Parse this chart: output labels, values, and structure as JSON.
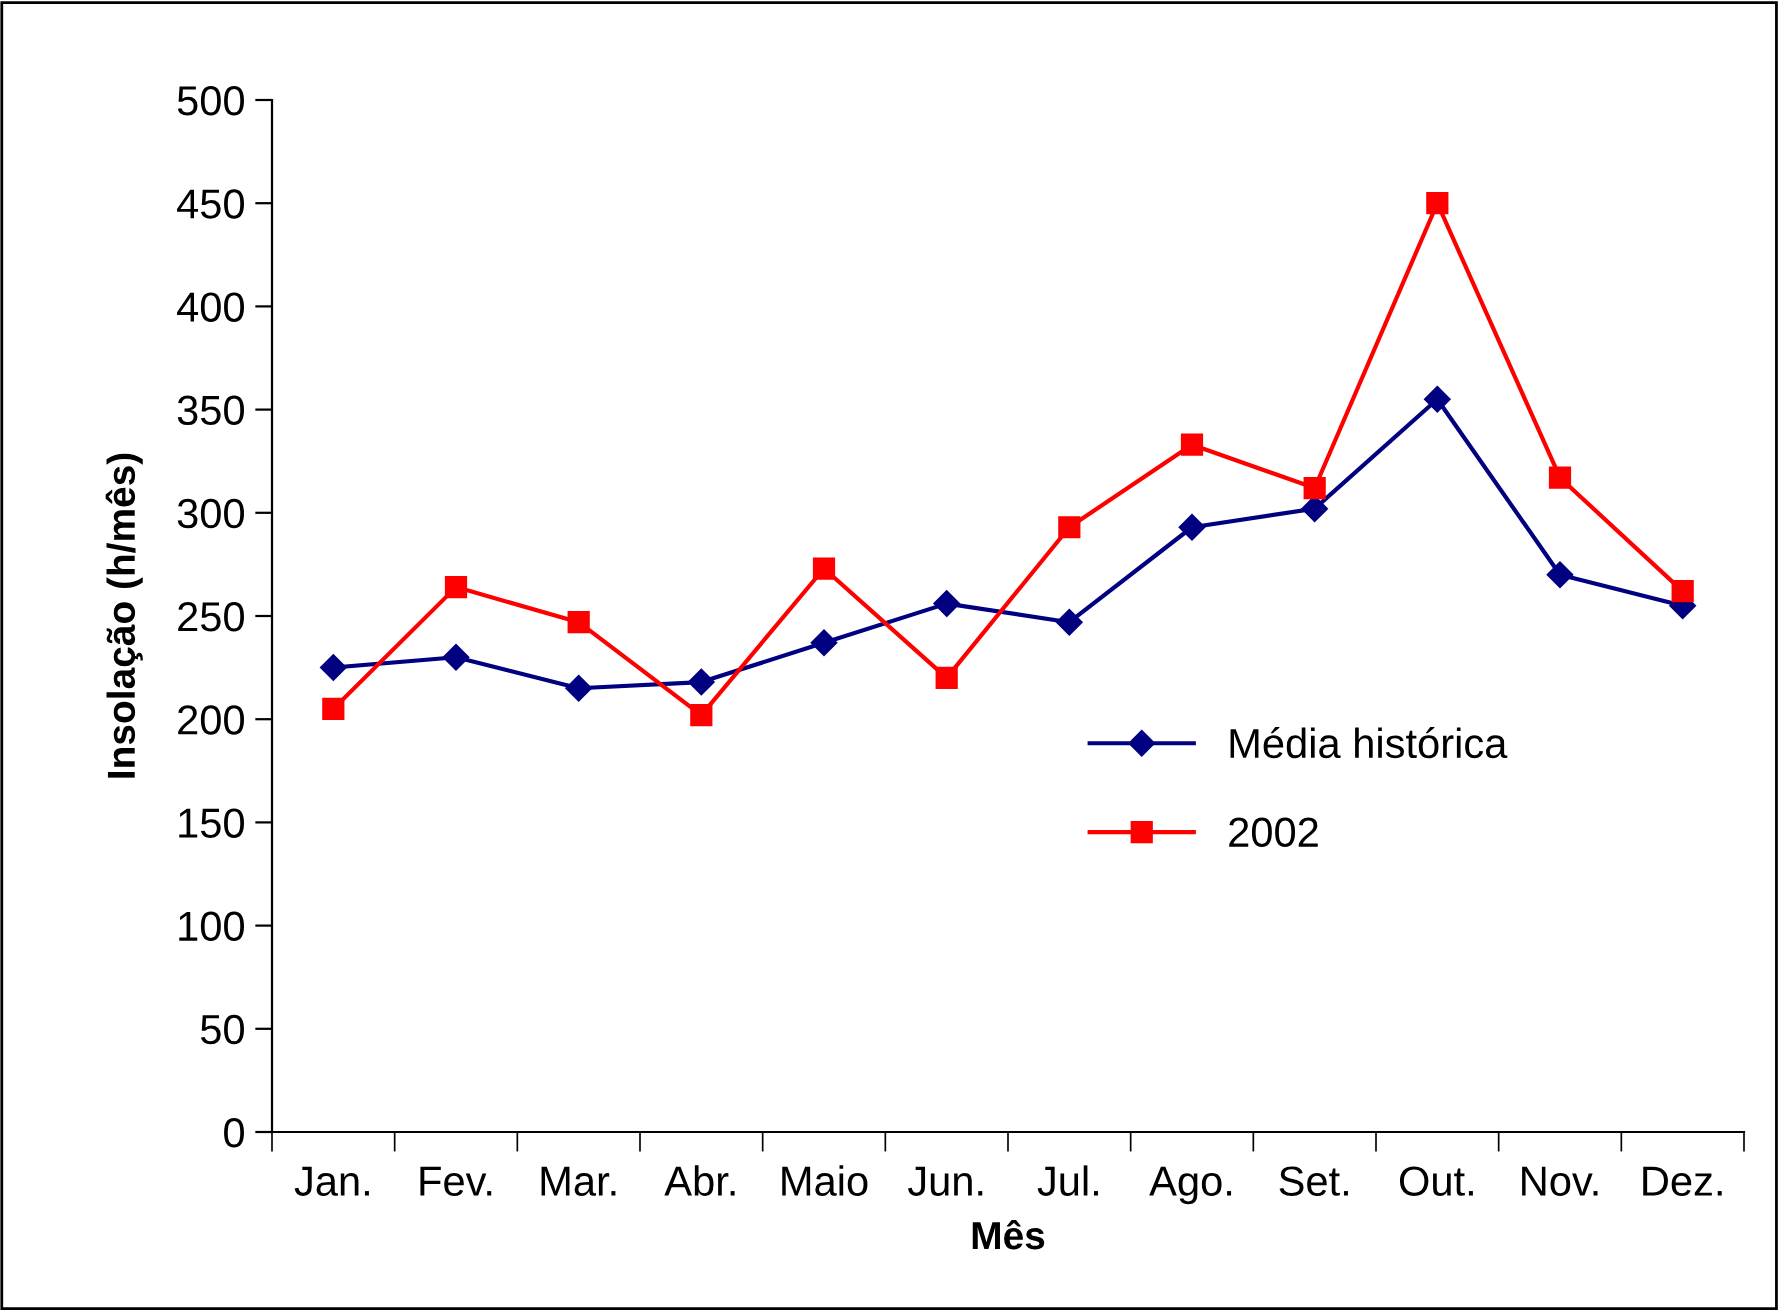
{
  "chart_data": {
    "type": "line",
    "xlabel": "Mês",
    "ylabel": "Insolação (h/mês)",
    "categories": [
      "Jan.",
      "Fev.",
      "Mar.",
      "Abr.",
      "Maio",
      "Jun.",
      "Jul.",
      "Ago.",
      "Set.",
      "Out.",
      "Nov.",
      "Dez."
    ],
    "series": [
      {
        "name": "Média histórica",
        "color": "#000080",
        "marker": "diamond",
        "values": [
          225,
          230,
          215,
          218,
          237,
          256,
          247,
          293,
          302,
          355,
          270,
          255
        ]
      },
      {
        "name": "2002",
        "color": "#ff0000",
        "marker": "square",
        "values": [
          205,
          264,
          247,
          202,
          273,
          220,
          293,
          333,
          312,
          450,
          317,
          262
        ]
      }
    ],
    "ylim": [
      0,
      500
    ],
    "yticks": [
      0,
      50,
      100,
      150,
      200,
      250,
      300,
      350,
      400,
      450,
      500
    ],
    "grid": false,
    "legend": "right",
    "line_style": "solid"
  }
}
